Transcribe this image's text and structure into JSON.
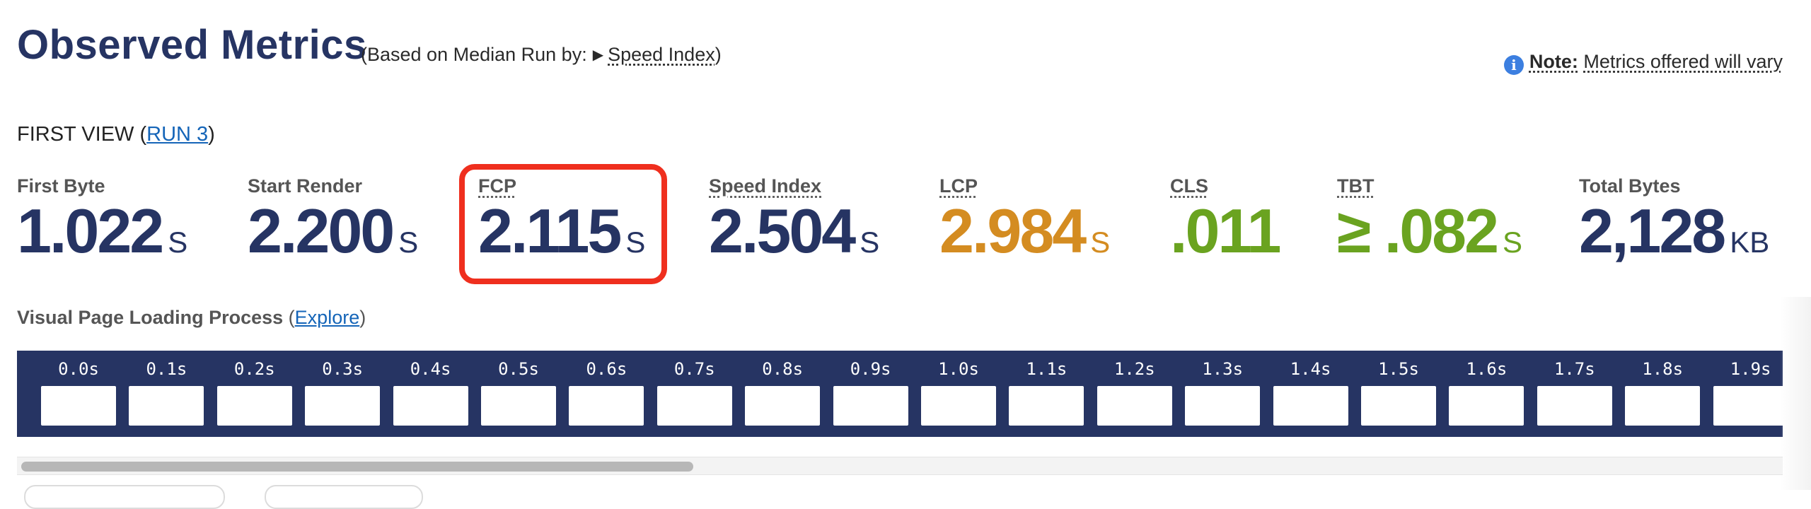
{
  "header": {
    "title": "Observed Metrics",
    "based_prefix": "(Based on Median Run by:",
    "based_triangle": "▶",
    "based_metric": "Speed Index",
    "based_suffix": ")",
    "note_icon": "i",
    "note_label": "Note:",
    "note_text": "Metrics offered will vary"
  },
  "first_view": {
    "label": "FIRST VIEW (",
    "run_link": "RUN 3",
    "suffix": ")"
  },
  "metrics": [
    {
      "label": "First Byte",
      "prefix": "",
      "value": "1.022",
      "unit": "S",
      "color": "#263463"
    },
    {
      "label": "Start Render",
      "prefix": "",
      "value": "2.200",
      "unit": "S",
      "color": "#263463"
    },
    {
      "label": "FCP",
      "prefix": "",
      "value": "2.115",
      "unit": "S",
      "color": "#263463"
    },
    {
      "label": "Speed Index",
      "prefix": "",
      "value": "2.504",
      "unit": "S",
      "color": "#263463"
    },
    {
      "label": "LCP",
      "prefix": "",
      "value": "2.984",
      "unit": "S",
      "color": "#d48c21"
    },
    {
      "label": "CLS",
      "prefix": "",
      "value": ".011",
      "unit": "",
      "color": "#6aa320"
    },
    {
      "label": "TBT",
      "prefix": "≥ ",
      "value": ".082",
      "unit": "S",
      "color": "#6aa320"
    },
    {
      "label": "Total Bytes",
      "prefix": "",
      "value": "2,128",
      "unit": "KB",
      "color": "#263463"
    }
  ],
  "visual": {
    "label": "Visual Page Loading Process",
    "open": "(",
    "link": "Explore",
    "close": ")"
  },
  "filmstrip": {
    "times": [
      "0.0s",
      "0.1s",
      "0.2s",
      "0.3s",
      "0.4s",
      "0.5s",
      "0.6s",
      "0.7s",
      "0.8s",
      "0.9s",
      "1.0s",
      "1.1s",
      "1.2s",
      "1.3s",
      "1.4s",
      "1.5s",
      "1.6s",
      "1.7s",
      "1.8s",
      "1.9s"
    ]
  },
  "colors": {
    "navy": "#263463",
    "orange": "#d48c21",
    "green": "#6aa320",
    "highlight": "#ef2f1e",
    "link": "#1565b8"
  }
}
